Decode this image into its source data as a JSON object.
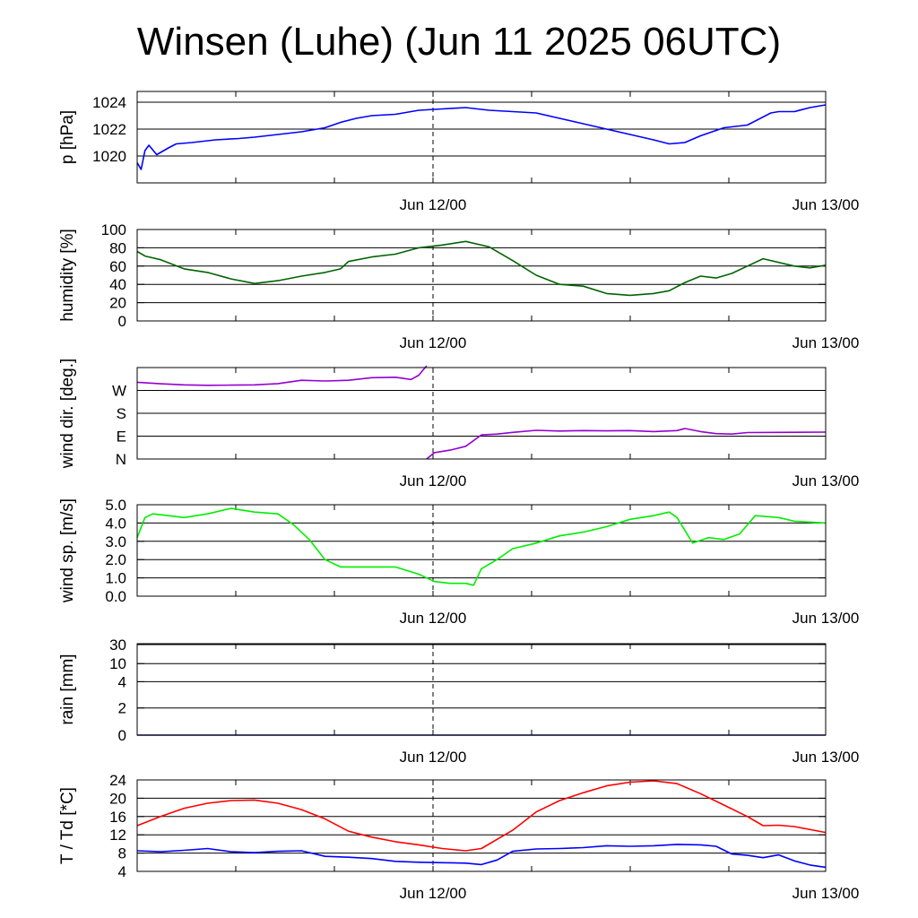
{
  "title": "Winsen (Luhe) (Jun 11 2025 06UTC)",
  "chart_data": [
    {
      "type": "line",
      "ylabel": "p [hPa]",
      "xlim": [
        "Jun 11 06UTC",
        "Jun 13 00UTC"
      ],
      "x_ticks": [
        "Jun 12/00",
        "Jun 13/00"
      ],
      "ylim": [
        1018,
        1024.8
      ],
      "y_ticks": [
        "1020",
        "1022",
        "1024"
      ],
      "y_tick_values": [
        1020,
        1022,
        1024
      ],
      "grid": true,
      "series": [
        {
          "color": "#0000ff",
          "points": [
            [
              0,
              1019.5
            ],
            [
              0.5,
              1019.0
            ],
            [
              1.0,
              1020.4
            ],
            [
              1.5,
              1020.8
            ],
            [
              2.5,
              1020.1
            ],
            [
              4,
              1020.6
            ],
            [
              5,
              1020.9
            ],
            [
              7,
              1021.0
            ],
            [
              10,
              1021.2
            ],
            [
              13,
              1021.3
            ],
            [
              15,
              1021.4
            ],
            [
              18,
              1021.6
            ],
            [
              21,
              1021.8
            ],
            [
              24,
              1022.1
            ],
            [
              26,
              1022.5
            ],
            [
              28,
              1022.8
            ],
            [
              30,
              1023.0
            ],
            [
              33,
              1023.1
            ],
            [
              36,
              1023.4
            ],
            [
              39,
              1023.5
            ],
            [
              42,
              1023.6
            ],
            [
              45,
              1023.4
            ],
            [
              48,
              1023.3
            ],
            [
              51,
              1023.2
            ],
            [
              54,
              1022.8
            ],
            [
              57,
              1022.4
            ],
            [
              60,
              1022.0
            ],
            [
              63,
              1021.6
            ],
            [
              66,
              1021.2
            ],
            [
              68,
              1020.9
            ],
            [
              70,
              1021.0
            ],
            [
              72,
              1021.5
            ],
            [
              75,
              1022.1
            ],
            [
              78,
              1022.3
            ],
            [
              81,
              1023.2
            ],
            [
              82,
              1023.3
            ],
            [
              84,
              1023.3
            ],
            [
              86,
              1023.6
            ],
            [
              88,
              1023.8
            ]
          ]
        }
      ]
    },
    {
      "type": "line",
      "ylabel": "humidity [%]",
      "xlim": [
        "Jun 11 06UTC",
        "Jun 13 00UTC"
      ],
      "x_ticks": [
        "Jun 12/00",
        "Jun 13/00"
      ],
      "ylim": [
        0,
        100
      ],
      "y_ticks": [
        "0",
        "20",
        "40",
        "60",
        "80",
        "100"
      ],
      "y_tick_values": [
        0,
        20,
        40,
        60,
        80,
        100
      ],
      "grid": true,
      "series": [
        {
          "color": "#006400",
          "points": [
            [
              0,
              76
            ],
            [
              1,
              71
            ],
            [
              3,
              67
            ],
            [
              6,
              57
            ],
            [
              9,
              53
            ],
            [
              12,
              46
            ],
            [
              15,
              41
            ],
            [
              18,
              44
            ],
            [
              21,
              49
            ],
            [
              24,
              53
            ],
            [
              26,
              57
            ],
            [
              27,
              65
            ],
            [
              30,
              70
            ],
            [
              33,
              73
            ],
            [
              36,
              80
            ],
            [
              39,
              83
            ],
            [
              42,
              87
            ],
            [
              45,
              81
            ],
            [
              48,
              66
            ],
            [
              51,
              50
            ],
            [
              54,
              40
            ],
            [
              57,
              38
            ],
            [
              60,
              30
            ],
            [
              63,
              28
            ],
            [
              66,
              30
            ],
            [
              68,
              33
            ],
            [
              70,
              42
            ],
            [
              72,
              49
            ],
            [
              74,
              47
            ],
            [
              76,
              52
            ],
            [
              78,
              60
            ],
            [
              80,
              68
            ],
            [
              84,
              60
            ],
            [
              86,
              58
            ],
            [
              88,
              61
            ]
          ]
        }
      ]
    },
    {
      "type": "line",
      "ylabel": "wind dir. [deg.]",
      "xlim": [
        "Jun 11 06UTC",
        "Jun 13 00UTC"
      ],
      "x_ticks": [
        "Jun 12/00",
        "Jun 13/00"
      ],
      "ylim": [
        0,
        360
      ],
      "y_ticks": [
        "N",
        "E",
        "S",
        "W"
      ],
      "y_tick_values": [
        0,
        90,
        180,
        270
      ],
      "grid": true,
      "series": [
        {
          "color": "#9400d3",
          "points": [
            [
              0,
              302
            ],
            [
              3,
              296
            ],
            [
              6,
              292
            ],
            [
              9,
              290
            ],
            [
              12,
              291
            ],
            [
              15,
              292
            ],
            [
              18,
              297
            ],
            [
              21,
              310
            ],
            [
              24,
              307
            ],
            [
              27,
              310
            ],
            [
              30,
              320
            ],
            [
              33,
              322
            ],
            [
              35,
              313
            ],
            [
              36,
              330
            ],
            [
              37,
              370
            ]
          ]
        },
        {
          "color": "#9400d3",
          "points": [
            [
              37,
              0
            ],
            [
              38,
              25
            ],
            [
              40,
              35
            ],
            [
              42,
              50
            ],
            [
              44,
              95
            ],
            [
              46,
              98
            ],
            [
              48,
              105
            ],
            [
              51,
              113
            ],
            [
              54,
              110
            ],
            [
              57,
              112
            ],
            [
              60,
              111
            ],
            [
              63,
              112
            ],
            [
              66,
              108
            ],
            [
              69,
              112
            ],
            [
              70,
              120
            ],
            [
              72,
              108
            ],
            [
              74,
              100
            ],
            [
              76,
              98
            ],
            [
              78,
              104
            ],
            [
              82,
              105
            ],
            [
              88,
              106
            ]
          ]
        }
      ]
    },
    {
      "type": "line",
      "ylabel": "wind sp. [m/s]",
      "xlim": [
        "Jun 11 06UTC",
        "Jun 13 00UTC"
      ],
      "x_ticks": [
        "Jun 12/00",
        "Jun 13/00"
      ],
      "ylim": [
        0,
        5
      ],
      "y_ticks": [
        "0.0",
        "1.0",
        "2.0",
        "3.0",
        "4.0",
        "5.0"
      ],
      "y_tick_values": [
        0,
        1,
        2,
        3,
        4,
        5
      ],
      "grid": true,
      "series": [
        {
          "color": "#00ee00",
          "points": [
            [
              0,
              3.2
            ],
            [
              1,
              4.3
            ],
            [
              2,
              4.5
            ],
            [
              4,
              4.4
            ],
            [
              6,
              4.3
            ],
            [
              9,
              4.5
            ],
            [
              12,
              4.8
            ],
            [
              15,
              4.6
            ],
            [
              18,
              4.5
            ],
            [
              20,
              3.9
            ],
            [
              22,
              3.1
            ],
            [
              24,
              2.0
            ],
            [
              26,
              1.6
            ],
            [
              30,
              1.6
            ],
            [
              33,
              1.6
            ],
            [
              36,
              1.2
            ],
            [
              38,
              0.8
            ],
            [
              40,
              0.7
            ],
            [
              42,
              0.7
            ],
            [
              43,
              0.6
            ],
            [
              44,
              1.5
            ],
            [
              46,
              2.0
            ],
            [
              48,
              2.6
            ],
            [
              51,
              2.9
            ],
            [
              54,
              3.3
            ],
            [
              57,
              3.5
            ],
            [
              60,
              3.8
            ],
            [
              63,
              4.2
            ],
            [
              66,
              4.4
            ],
            [
              68,
              4.6
            ],
            [
              69,
              4.3
            ],
            [
              71,
              2.9
            ],
            [
              73,
              3.2
            ],
            [
              75,
              3.1
            ],
            [
              77,
              3.4
            ],
            [
              79,
              4.4
            ],
            [
              82,
              4.3
            ],
            [
              84,
              4.1
            ],
            [
              88,
              4.0
            ]
          ]
        }
      ]
    },
    {
      "type": "line",
      "ylabel": "rain [mm]",
      "xlim": [
        "Jun 11 06UTC",
        "Jun 13 00UTC"
      ],
      "x_ticks": [
        "Jun 12/00",
        "Jun 13/00"
      ],
      "y_scale": "log",
      "ylim": [
        0,
        30
      ],
      "y_ticks": [
        "0",
        "2",
        "4",
        "10",
        "30"
      ],
      "y_tick_values": [
        0,
        2,
        4,
        10,
        30
      ],
      "grid": true,
      "series": [
        {
          "color": "#000080",
          "points": [
            [
              0,
              0
            ],
            [
              88,
              0
            ]
          ]
        }
      ]
    },
    {
      "type": "line",
      "ylabel": "T / Td [*C]",
      "xlim": [
        "Jun 11 06UTC",
        "Jun 13 00UTC"
      ],
      "x_ticks": [
        "Jun 12/00",
        "Jun 13/00"
      ],
      "ylim": [
        4,
        24
      ],
      "y_ticks": [
        "4",
        "8",
        "12",
        "16",
        "20",
        "24"
      ],
      "y_tick_values": [
        4,
        8,
        12,
        16,
        20,
        24
      ],
      "grid": true,
      "series": [
        {
          "color": "#ff0000",
          "points": [
            [
              0,
              14
            ],
            [
              3,
              16
            ],
            [
              6,
              17.8
            ],
            [
              9,
              18.9
            ],
            [
              12,
              19.5
            ],
            [
              15,
              19.6
            ],
            [
              18,
              18.9
            ],
            [
              21,
              17.5
            ],
            [
              24,
              15.5
            ],
            [
              27,
              12.8
            ],
            [
              30,
              11.5
            ],
            [
              33,
              10.5
            ],
            [
              36,
              9.8
            ],
            [
              39,
              9.0
            ],
            [
              42,
              8.5
            ],
            [
              44,
              9.0
            ],
            [
              48,
              13.0
            ],
            [
              51,
              17.0
            ],
            [
              54,
              19.5
            ],
            [
              57,
              21.2
            ],
            [
              60,
              22.7
            ],
            [
              63,
              23.5
            ],
            [
              66,
              23.8
            ],
            [
              69,
              23.2
            ],
            [
              72,
              21.0
            ],
            [
              75,
              18.5
            ],
            [
              78,
              16.0
            ],
            [
              80,
              14.0
            ],
            [
              82,
              14.1
            ],
            [
              84,
              13.8
            ],
            [
              88,
              12.5
            ]
          ]
        },
        {
          "color": "#0000ff",
          "points": [
            [
              0,
              8.5
            ],
            [
              3,
              8.3
            ],
            [
              6,
              8.6
            ],
            [
              9,
              9.0
            ],
            [
              12,
              8.3
            ],
            [
              15,
              8.1
            ],
            [
              18,
              8.4
            ],
            [
              21,
              8.5
            ],
            [
              24,
              7.3
            ],
            [
              27,
              7.1
            ],
            [
              30,
              6.8
            ],
            [
              33,
              6.2
            ],
            [
              36,
              6.0
            ],
            [
              39,
              5.9
            ],
            [
              42,
              5.8
            ],
            [
              44,
              5.5
            ],
            [
              46,
              6.5
            ],
            [
              48,
              8.4
            ],
            [
              51,
              8.9
            ],
            [
              54,
              9.0
            ],
            [
              57,
              9.2
            ],
            [
              60,
              9.6
            ],
            [
              63,
              9.5
            ],
            [
              66,
              9.6
            ],
            [
              69,
              9.9
            ],
            [
              72,
              9.8
            ],
            [
              74,
              9.5
            ],
            [
              76,
              7.8
            ],
            [
              78,
              7.5
            ],
            [
              80,
              7.0
            ],
            [
              82,
              7.6
            ],
            [
              84,
              6.3
            ],
            [
              86,
              5.4
            ],
            [
              88,
              4.9
            ]
          ]
        }
      ]
    }
  ]
}
